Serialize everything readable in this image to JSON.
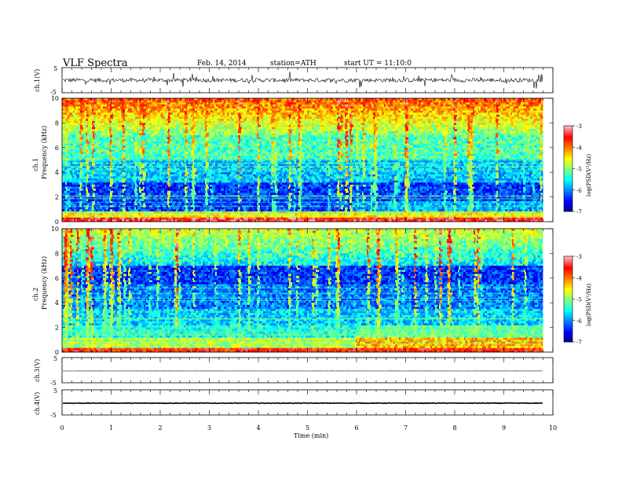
{
  "header": {
    "title": "VLF Spectra",
    "date": "Feb. 14, 2014",
    "station": "station=ATH",
    "start": "start  UT =   11:10:0"
  },
  "colors": {
    "colormap": [
      "#00007f",
      "#0000ff",
      "#007fff",
      "#00ffff",
      "#7fff7f",
      "#ffff00",
      "#ff7f00",
      "#ff0000",
      "#ffb0b0"
    ],
    "trace": "#000000"
  },
  "chart_data": [
    {
      "type": "line",
      "ylabel": "ch.1(V)",
      "ylim": [
        -5,
        5
      ],
      "yticks": [
        "5",
        "-5"
      ],
      "xlim": [
        0,
        10
      ]
    },
    {
      "type": "heatmap",
      "ylabel_channel": "ch.1",
      "ylabel": "Frequency  (kHz)",
      "ylim": [
        0,
        10
      ],
      "yticks": [
        "0",
        "2",
        "4",
        "6",
        "8",
        "10"
      ],
      "xlim": [
        0,
        10
      ],
      "data_end_min": 9.8,
      "colorbar": {
        "label": "log(PSD(V²/Hz)",
        "range": [
          -7,
          -3
        ],
        "ticks": [
          "-3",
          "-4",
          "-5",
          "-6",
          "-7"
        ]
      }
    },
    {
      "type": "heatmap",
      "ylabel_channel": "ch.2",
      "ylabel": "Frequency  (kHz)",
      "ylim": [
        0,
        10
      ],
      "yticks": [
        "0",
        "2",
        "4",
        "6",
        "8",
        "10"
      ],
      "xlim": [
        0,
        10
      ],
      "data_end_min": 9.8,
      "colorbar": {
        "label": "log(PSD(V²/Hz)",
        "range": [
          -7,
          -3
        ],
        "ticks": [
          "-3",
          "-4",
          "-5",
          "-6",
          "-7"
        ]
      }
    },
    {
      "type": "line",
      "ylabel": "ch.3(V)",
      "ylim": [
        -5,
        5
      ],
      "yticks": [
        "5",
        "-5"
      ],
      "xlim": [
        0,
        10
      ],
      "level": -0.3
    },
    {
      "type": "line",
      "ylabel": "ch.4(V)",
      "ylim": [
        -5,
        5
      ],
      "yticks": [
        "5",
        "-5"
      ],
      "xlim": [
        0,
        10
      ],
      "level": -0.3,
      "xlabel": "Time  (min)",
      "xticks": [
        "0",
        "1",
        "2",
        "3",
        "4",
        "5",
        "6",
        "7",
        "8",
        "9",
        "10"
      ]
    }
  ]
}
